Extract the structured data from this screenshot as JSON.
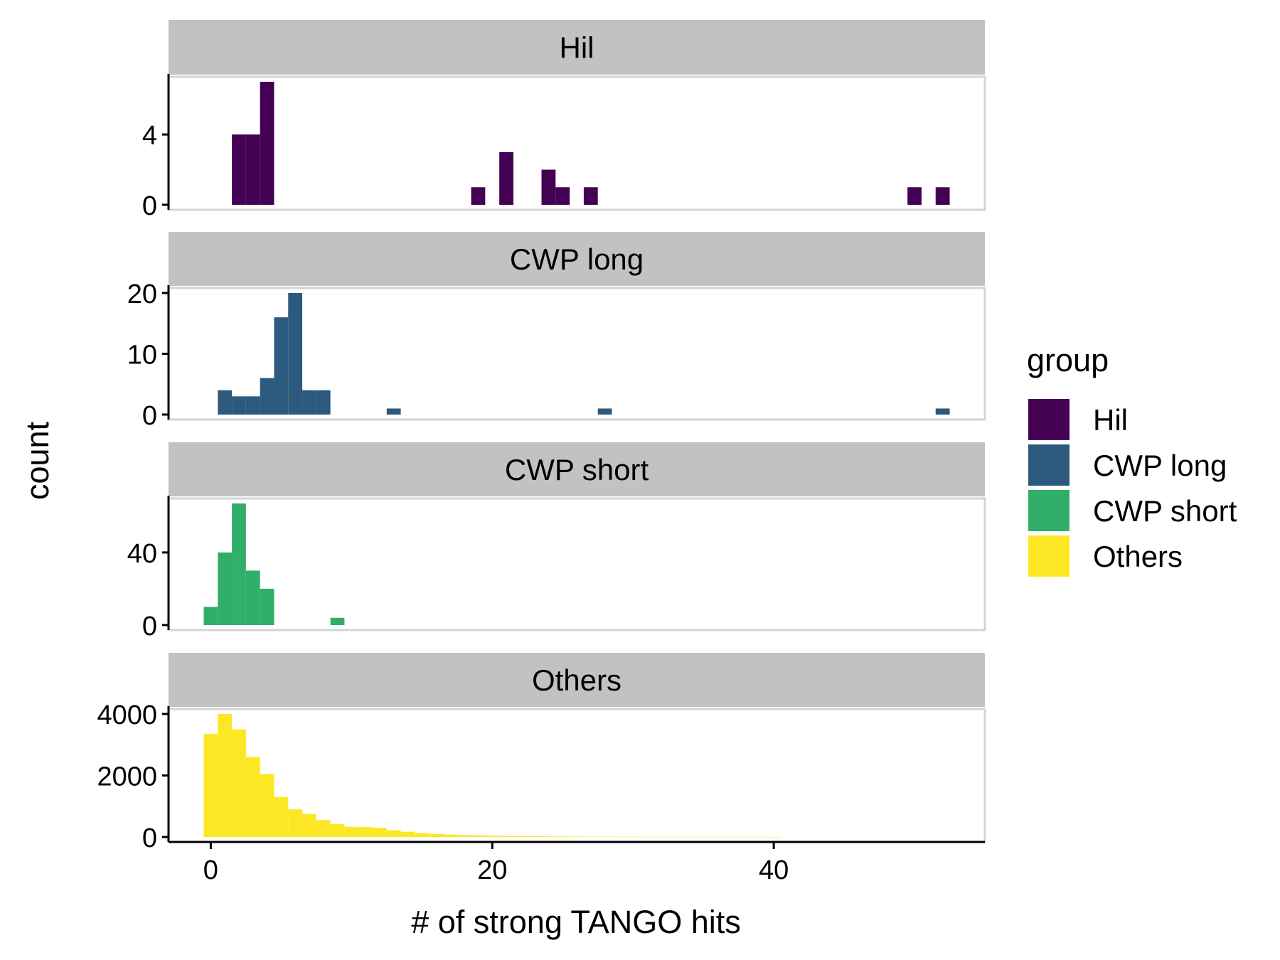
{
  "chart_data": {
    "type": "bar",
    "subtype": "faceted-histogram",
    "xlabel": "# of strong TANGO hits",
    "ylabel": "count",
    "xlim": [
      -3,
      55
    ],
    "x_ticks": [
      0,
      20,
      40
    ],
    "bin_width": 1,
    "legend": {
      "title": "group",
      "position": "right",
      "entries": [
        "Hil",
        "CWP long",
        "CWP short",
        "Others"
      ]
    },
    "facets": [
      {
        "label": "Hil",
        "color": "#440154",
        "ylim": [
          0,
          7
        ],
        "y_ticks": [
          0,
          4
        ],
        "bins": [
          {
            "x": 2,
            "count": 4
          },
          {
            "x": 3,
            "count": 4
          },
          {
            "x": 4,
            "count": 7
          },
          {
            "x": 19,
            "count": 1
          },
          {
            "x": 21,
            "count": 3
          },
          {
            "x": 24,
            "count": 2
          },
          {
            "x": 25,
            "count": 1
          },
          {
            "x": 27,
            "count": 1
          },
          {
            "x": 50,
            "count": 1
          },
          {
            "x": 52,
            "count": 1
          }
        ]
      },
      {
        "label": "CWP long",
        "color": "#2C5A7E",
        "ylim": [
          0,
          20
        ],
        "y_ticks": [
          0,
          10,
          20
        ],
        "bins": [
          {
            "x": 1,
            "count": 4
          },
          {
            "x": 2,
            "count": 3
          },
          {
            "x": 3,
            "count": 3
          },
          {
            "x": 4,
            "count": 6
          },
          {
            "x": 5,
            "count": 16
          },
          {
            "x": 6,
            "count": 20
          },
          {
            "x": 7,
            "count": 4
          },
          {
            "x": 8,
            "count": 4
          },
          {
            "x": 13,
            "count": 1
          },
          {
            "x": 28,
            "count": 1
          },
          {
            "x": 52,
            "count": 1
          }
        ]
      },
      {
        "label": "CWP short",
        "color": "#31AE6A",
        "ylim": [
          0,
          67
        ],
        "y_ticks": [
          0,
          40
        ],
        "bins": [
          {
            "x": 0,
            "count": 10
          },
          {
            "x": 1,
            "count": 40
          },
          {
            "x": 2,
            "count": 67
          },
          {
            "x": 3,
            "count": 30
          },
          {
            "x": 4,
            "count": 20
          },
          {
            "x": 9,
            "count": 4
          }
        ]
      },
      {
        "label": "Others",
        "color": "#FDE725",
        "ylim": [
          0,
          4000
        ],
        "y_ticks": [
          0,
          2000,
          4000
        ],
        "bins": [
          {
            "x": 0,
            "count": 3350
          },
          {
            "x": 1,
            "count": 4000
          },
          {
            "x": 2,
            "count": 3500
          },
          {
            "x": 3,
            "count": 2600
          },
          {
            "x": 4,
            "count": 2050
          },
          {
            "x": 5,
            "count": 1300
          },
          {
            "x": 6,
            "count": 900
          },
          {
            "x": 7,
            "count": 750
          },
          {
            "x": 8,
            "count": 550
          },
          {
            "x": 9,
            "count": 420
          },
          {
            "x": 10,
            "count": 330
          },
          {
            "x": 11,
            "count": 320
          },
          {
            "x": 12,
            "count": 300
          },
          {
            "x": 13,
            "count": 220
          },
          {
            "x": 14,
            "count": 170
          },
          {
            "x": 15,
            "count": 130
          },
          {
            "x": 16,
            "count": 100
          },
          {
            "x": 17,
            "count": 80
          },
          {
            "x": 18,
            "count": 60
          },
          {
            "x": 19,
            "count": 50
          },
          {
            "x": 20,
            "count": 40
          },
          {
            "x": 21,
            "count": 35
          },
          {
            "x": 22,
            "count": 30
          },
          {
            "x": 23,
            "count": 25
          },
          {
            "x": 24,
            "count": 20
          },
          {
            "x": 25,
            "count": 18
          },
          {
            "x": 26,
            "count": 15
          },
          {
            "x": 27,
            "count": 12
          },
          {
            "x": 28,
            "count": 10
          },
          {
            "x": 29,
            "count": 9
          },
          {
            "x": 30,
            "count": 8
          },
          {
            "x": 31,
            "count": 7
          },
          {
            "x": 32,
            "count": 6
          },
          {
            "x": 33,
            "count": 5
          },
          {
            "x": 34,
            "count": 5
          },
          {
            "x": 35,
            "count": 4
          },
          {
            "x": 36,
            "count": 4
          },
          {
            "x": 37,
            "count": 3
          },
          {
            "x": 38,
            "count": 3
          },
          {
            "x": 39,
            "count": 3
          },
          {
            "x": 40,
            "count": 2
          }
        ]
      }
    ]
  }
}
